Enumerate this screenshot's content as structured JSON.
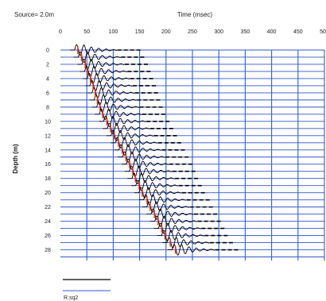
{
  "chart_data": {
    "type": "line",
    "title": "Time (msec)",
    "source_label": "Source= 2.0m",
    "xlabel": "Time (msec)",
    "ylabel": "Depth (m)",
    "x_ticks": [
      "0",
      "50",
      "100",
      "150",
      "200",
      "250",
      "300",
      "350",
      "400",
      "450",
      "500"
    ],
    "y_ticks": [
      "0",
      "2",
      "4",
      "6",
      "8",
      "10",
      "12",
      "14",
      "16",
      "18",
      "20",
      "22",
      "24",
      "26",
      "28"
    ],
    "xlim": [
      0,
      500
    ],
    "ylim": [
      0,
      29.5
    ],
    "depth_step": 1,
    "legend_items": [
      "",
      "R.sq2"
    ],
    "first_break_times_ms": [
      33,
      40,
      47,
      52,
      57,
      62,
      66,
      70,
      75,
      80,
      88,
      95,
      102,
      110,
      117,
      124,
      131,
      137,
      142,
      149,
      155,
      164,
      170,
      178,
      185,
      192,
      198,
      208,
      218
    ],
    "colors": {
      "trace": "#000000",
      "first_break": "#ff2200",
      "time_grid": "#2f5fd0",
      "depth_grid": "#3355cc"
    },
    "grid": true
  }
}
